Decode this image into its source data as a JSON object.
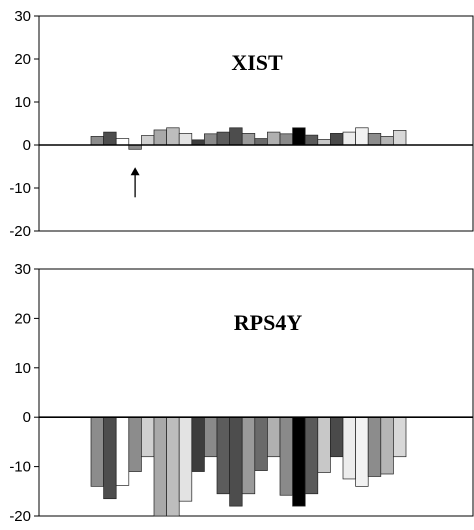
{
  "chart_data": [
    {
      "type": "bar",
      "title": "XIST",
      "ylim": [
        -20,
        30
      ],
      "yticks": [
        "30",
        "20",
        "10",
        "0",
        "-10",
        "-20"
      ],
      "grid": false,
      "values": [
        2,
        3,
        1.5,
        -1,
        2.2,
        3.5,
        4,
        2.7,
        1.2,
        2.6,
        3,
        4,
        2.7,
        1.5,
        3,
        2.6,
        4,
        2.3,
        1.3,
        2.7,
        3,
        4,
        2.7,
        2,
        3.4
      ],
      "colors": [
        "#8c8c8c",
        "#4d4d4d",
        "#ffffff",
        "#8c8c8c",
        "#d0d0d0",
        "#a9a9a9",
        "#bdbdbd",
        "#e3e3e3",
        "#3d3d3d",
        "#8a8a8a",
        "#5c5c5c",
        "#4d4d4d",
        "#9a9a9a",
        "#6a6a6a",
        "#b0b0b0",
        "#8a8a8a",
        "#000000",
        "#5a5a5a",
        "#c8c8c8",
        "#4a4a4a",
        "#ececec",
        "#f2f2f2",
        "#8c8c8c",
        "#b5b5b5",
        "#d8d8d8"
      ],
      "annotation": {
        "type": "arrow",
        "category_index": 3
      }
    },
    {
      "type": "bar",
      "title": "RPS4Y",
      "ylim": [
        -20,
        30
      ],
      "yticks": [
        "30",
        "20",
        "10",
        "0",
        "-10",
        "-20"
      ],
      "grid": false,
      "values": [
        -14,
        -16.5,
        -13.8,
        -11,
        -8,
        -20,
        -20,
        -17,
        -11,
        -8,
        -15.5,
        -18,
        -15.5,
        -10.8,
        -8,
        -15.8,
        -18,
        -15.5,
        -11.2,
        -8,
        -12.5,
        -14,
        -12,
        -11.5,
        -8
      ],
      "colors": [
        "#8c8c8c",
        "#4d4d4d",
        "#ffffff",
        "#8c8c8c",
        "#d0d0d0",
        "#a9a9a9",
        "#bdbdbd",
        "#e3e3e3",
        "#3d3d3d",
        "#8a8a8a",
        "#5c5c5c",
        "#4d4d4d",
        "#9a9a9a",
        "#6a6a6a",
        "#b0b0b0",
        "#8a8a8a",
        "#000000",
        "#5a5a5a",
        "#c8c8c8",
        "#4a4a4a",
        "#ececec",
        "#f2f2f2",
        "#8c8c8c",
        "#b5b5b5",
        "#d8d8d8"
      ]
    }
  ]
}
